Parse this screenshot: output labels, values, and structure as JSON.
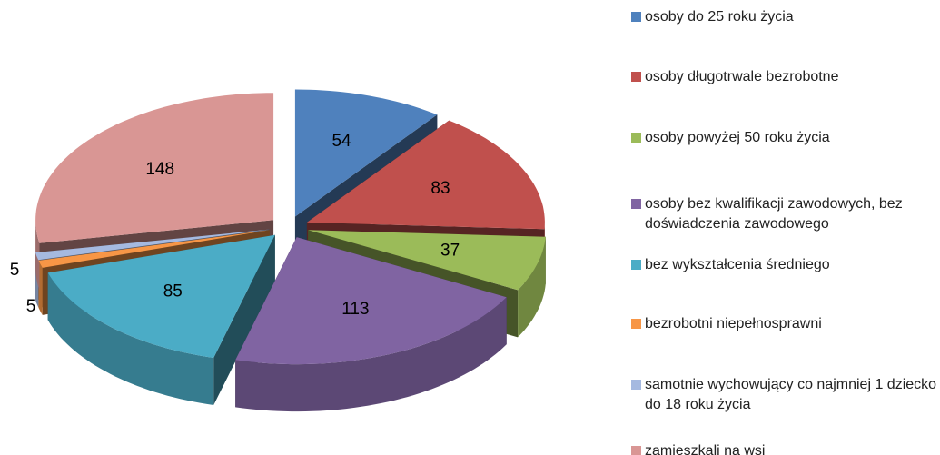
{
  "chart_data": {
    "type": "pie",
    "categories": [
      "osoby do 25 roku życia",
      "osoby długotrwale bezrobotne",
      "osoby powyżej 50 roku życia",
      "osoby bez kwalifikacji zawodowych, bez doświadczenia zawodowego",
      "bez wykształcenia średniego",
      "bezrobotni niepełnosprawni",
      "samotnie wychowujący co najmniej 1 dziecko do 18 roku życia",
      "zamieszkali na wsi"
    ],
    "values": [
      54,
      83,
      37,
      113,
      85,
      5,
      5,
      148
    ],
    "colors": [
      "#4f81bd",
      "#c0504d",
      "#9bbb59",
      "#8064a2",
      "#4bacc6",
      "#f79646",
      "#a5b9e0",
      "#d99694"
    ],
    "legend": "right"
  }
}
